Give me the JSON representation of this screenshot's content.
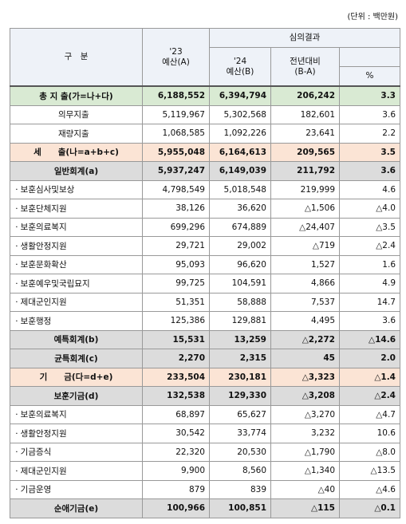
{
  "unit": "(단위 : 백만원)",
  "header": {
    "category": "구　분",
    "budget_23": "'23\n예산(A)",
    "review": "심의결과",
    "budget_24": "'24\n예산(B)",
    "change": "전년대비\n(B-A)",
    "percent": "%"
  },
  "table": {
    "rows": [
      [
        "총 지 출(가=나+다)",
        "6,188,552",
        "6,394,794",
        "206,242",
        "3.3"
      ],
      [
        "의무지출",
        "5,119,967",
        "5,302,568",
        "182,601",
        "3.6"
      ],
      [
        "재량지출",
        "1,068,585",
        "1,092,226",
        "23,641",
        "2.2"
      ],
      [
        "세　　출(나=a+b+c)",
        "5,955,048",
        "6,164,613",
        "209,565",
        "3.5"
      ],
      [
        "일반회계(a)",
        "5,937,247",
        "6,149,039",
        "211,792",
        "3.6"
      ],
      [
        "ㆍ보훈심사및보상",
        "4,798,549",
        "5,018,548",
        "219,999",
        "4.6"
      ],
      [
        "ㆍ보훈단체지원",
        "38,126",
        "36,620",
        "△1,506",
        "△4.0"
      ],
      [
        "ㆍ보훈의료복지",
        "699,296",
        "674,889",
        "△24,407",
        "△3.5"
      ],
      [
        "ㆍ생활안정지원",
        "29,721",
        "29,002",
        "△719",
        "△2.4"
      ],
      [
        "ㆍ보훈문화확산",
        "95,093",
        "96,620",
        "1,527",
        "1.6"
      ],
      [
        "ㆍ보훈예우및국립묘지",
        "99,725",
        "104,591",
        "4,866",
        "4.9"
      ],
      [
        "ㆍ제대군인지원",
        "51,351",
        "58,888",
        "7,537",
        "14.7"
      ],
      [
        "ㆍ보훈행정",
        "125,386",
        "129,881",
        "4,495",
        "3.6"
      ],
      [
        "예특회계(b)",
        "15,531",
        "13,259",
        "△2,272",
        "△14.6"
      ],
      [
        "균특회계(c)",
        "2,270",
        "2,315",
        "45",
        "2.0"
      ],
      [
        "기　　금(다=d+e)",
        "233,504",
        "230,181",
        "△3,323",
        "△1.4"
      ],
      [
        "보훈기금(d)",
        "132,538",
        "129,330",
        "△3,208",
        "△2.4"
      ],
      [
        "ㆍ보훈의료복지",
        "68,897",
        "65,627",
        "△3,270",
        "△4.7"
      ],
      [
        "ㆍ생활안정지원",
        "30,542",
        "33,774",
        "3,232",
        "10.6"
      ],
      [
        "ㆍ기금증식",
        "22,320",
        "20,530",
        "△1,790",
        "△8.0"
      ],
      [
        "ㆍ제대군인지원",
        "9,900",
        "8,560",
        "△1,340",
        "△13.5"
      ],
      [
        "ㆍ기금운영",
        "879",
        "839",
        "△40",
        "△4.6"
      ],
      [
        "순애기금(e)",
        "100,966",
        "100,851",
        "△115",
        "△0.1"
      ]
    ]
  }
}
